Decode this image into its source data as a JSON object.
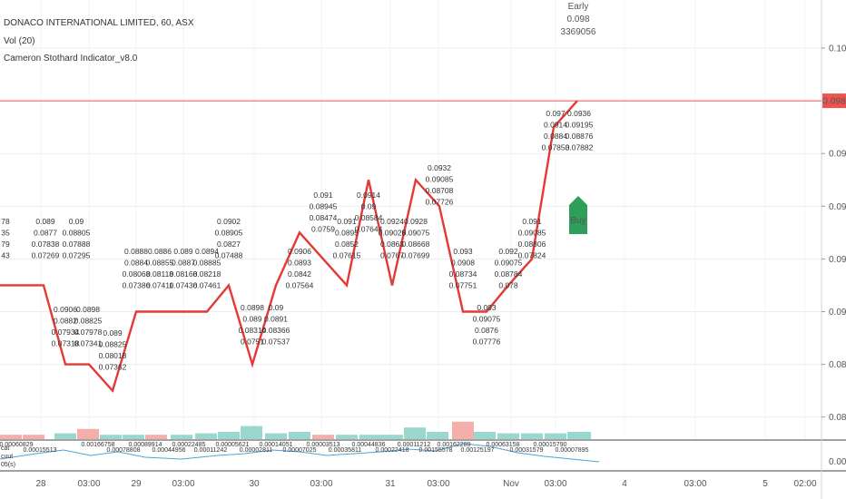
{
  "header": {
    "symbol_line": "DONACO INTERNATIONAL LIMITED, 60, ASX",
    "vol_label": "Vol (20)",
    "indicator_name": "Cameron Stothard Indicator_v8.0"
  },
  "early_badge": {
    "label": "Early",
    "price": "0.098",
    "volume": "3369056"
  },
  "buy_label": "Buy",
  "current_price": "0.098",
  "colors": {
    "line": "#e53935",
    "up_volume": "#8fd3c9",
    "down_volume": "#f4a6a2",
    "price_line": "#ef5350",
    "buy": "#2e9e5b",
    "early_text": "#42a5f5",
    "grid": "#e8eef5"
  },
  "chart_data": {
    "type": "line",
    "title": "DONACO INTERNATIONAL LIMITED, 60, ASX",
    "ylim": [
      0.0855,
      0.1005
    ],
    "y_ticks": [
      "0.100",
      "0.098",
      "0.096",
      "0.094",
      "0.092",
      "0.090",
      "0.088",
      "0.086"
    ],
    "x_ticks": [
      "28",
      "03:00",
      "29",
      "03:00",
      "30",
      "03:00",
      "31",
      "03:00",
      "Nov",
      "03:00",
      "4",
      "03:00",
      "5",
      "02:00"
    ],
    "series": [
      {
        "values": [
          0.091,
          0.091,
          0.091,
          0.091,
          0.091,
          0.088,
          0.088,
          0.087,
          0.09,
          0.09,
          0.09,
          0.09,
          0.091,
          0.088,
          0.091,
          0.093,
          0.092,
          0.091,
          0.093,
          0.095,
          0.093,
          0.091,
          0.095,
          0.094,
          0.093,
          0.09,
          0.09,
          0.09,
          0.091,
          0.092,
          0.097,
          0.098
        ]
      }
    ],
    "volume": {
      "values": [
        0.3,
        0.3,
        0.4,
        0.7,
        0.3,
        0.3,
        0.3,
        0.3,
        0.4,
        0.5,
        0.9,
        0.4,
        0.5,
        0.3,
        0.3,
        0.3,
        0.3,
        0.8,
        0.5,
        1.2,
        0.5,
        0.4,
        0.4,
        0.4,
        0.5,
        3.1,
        0.9,
        0.6,
        0.6,
        0.6,
        0.7,
        7.8
      ],
      "colors": [
        "down",
        "down",
        "up",
        "down",
        "up",
        "up",
        "down",
        "up",
        "up",
        "up",
        "up",
        "up",
        "up",
        "down",
        "up",
        "up",
        "up",
        "up",
        "up",
        "down",
        "up",
        "up",
        "up",
        "up",
        "up",
        "down",
        "up",
        "up",
        "up",
        "up",
        "up",
        "up"
      ]
    },
    "annotations": [
      {
        "lines": [
          "78",
          "35",
          "79",
          "43"
        ]
      },
      {
        "lines": [
          "0.089",
          "0.0877",
          "0.07838",
          "0.07269"
        ]
      },
      {
        "lines": [
          "0.09",
          "0.08805",
          "0.07888",
          "0.07295"
        ]
      },
      {
        "lines": [
          "0.0906",
          "0.0882",
          "0.07934",
          "0.07318"
        ]
      },
      {
        "lines": [
          "0.0898",
          "0.08825",
          "0.07978",
          "0.07341"
        ]
      },
      {
        "lines": [
          "0.089",
          "0.08825",
          "0.08018",
          "0.07362"
        ]
      },
      {
        "lines": [
          "0.0888",
          "0.0884",
          "0.08068",
          "0.07386"
        ]
      },
      {
        "lines": [
          "0.0886",
          "0.08855",
          "0.08118",
          "0.07411"
        ]
      },
      {
        "lines": [
          "0.089",
          "0.0887",
          "0.08168",
          "0.07436"
        ]
      },
      {
        "lines": [
          "0.0894",
          "0.08885",
          "0.08218",
          "0.07461"
        ]
      },
      {
        "lines": [
          "0.0902",
          "0.08905",
          "0.0827",
          "0.07488"
        ]
      },
      {
        "lines": [
          "0.0898",
          "0.089",
          "0.08314",
          "0.0751"
        ]
      },
      {
        "lines": [
          "0.09",
          "0.0891",
          "0.08366",
          "0.07537"
        ]
      },
      {
        "lines": [
          "0.0906",
          "0.0893",
          "0.0842",
          "0.07564"
        ]
      },
      {
        "lines": [
          "0.091",
          "0.08945",
          "0.08474",
          "0.0759"
        ]
      },
      {
        "lines": [
          "0.091",
          "0.0895",
          "0.0852",
          "0.07615"
        ]
      },
      {
        "lines": [
          "0.0914",
          "0.09",
          "0.08584",
          "0.07644"
        ]
      },
      {
        "lines": [
          "0.0924",
          "0.09025",
          "0.0863",
          "0.0767"
        ]
      },
      {
        "lines": [
          "0.0928",
          "0.09075",
          "0.08668",
          "0.07699"
        ]
      },
      {
        "lines": [
          "0.0932",
          "0.09085",
          "0.08708",
          "0.07726"
        ]
      },
      {
        "lines": [
          "0.093",
          "0.0908",
          "0.08734",
          "0.07751"
        ]
      },
      {
        "lines": [
          "0.093",
          "0.09075",
          "0.0876",
          "0.07776"
        ]
      },
      {
        "lines": [
          "0.092",
          "0.09075",
          "0.08784",
          "0.078"
        ]
      },
      {
        "lines": [
          "0.091",
          "0.09085",
          "0.08806",
          "0.07824"
        ]
      },
      {
        "lines": [
          "0.097",
          "0.0914",
          "0.0884",
          "0.07853"
        ]
      },
      {
        "lines": [
          "0.0936",
          "0.09195",
          "0.08876",
          "0.07882"
        ]
      }
    ],
    "indicator_values": [
      "0.00060829",
      "0.00015513",
      "0.00166758",
      "0.00078808",
      "0.00089914",
      "0.00044956",
      "0.00022485",
      "0.00011242",
      "0.00005621",
      "0.00002811",
      "0.00014051",
      "0.00007025",
      "0.00003513",
      "0.00035811",
      "0.00044836",
      "0.00022418",
      "0.00011212",
      "0.00155578",
      "0.00162289",
      "0.00125197",
      "0.00063158",
      "0.00031579",
      "0.00015790",
      "0.00007895"
    ],
    "indicator_labels": [
      "cat",
      "cuut",
      "05(s)"
    ]
  }
}
